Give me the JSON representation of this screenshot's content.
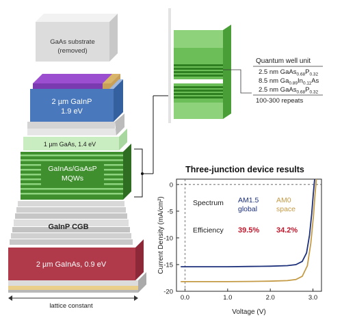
{
  "stack": {
    "substrate": "GaAs substrate",
    "substrate_note": "(removed)",
    "top_cell_line1": "2 µm GaInP",
    "top_cell_line2": "1.9 eV",
    "gaas_layer": "1 µm GaAs, 1.4 eV",
    "mqw_line1": "GaInAs/GaAsP",
    "mqw_line2": "MQWs",
    "cgb": "GaInP  CGB",
    "bottom_cell": "2 µm GaInAs, 0.9 eV",
    "axis_label": "lattice constant"
  },
  "quantum_well": {
    "title": "Quantum well unit",
    "layers": [
      {
        "base": "2.5 nm GaAs",
        "sub": "0.68",
        "mid": "P",
        "sub2": "0.32",
        "tail": ""
      },
      {
        "base": "8.5 nm Ga",
        "sub": "0.89",
        "mid": "In",
        "sub2": "0.11",
        "tail": "As"
      },
      {
        "base": "2.5 nm GaAs",
        "sub": "0.68",
        "mid": "P",
        "sub2": "0.32",
        "tail": ""
      }
    ],
    "repeats": "100-300 repeats"
  },
  "colors": {
    "top_cell": "#4a78bd",
    "gaas": "#c9ecc0",
    "mqw_green": "#3f8f2e",
    "bottom_cell": "#b0394a",
    "purple": "#9b4fd0",
    "gold": "#d9b56a",
    "am15_curve": "#1b2f7a",
    "am0_curve": "#c49a45",
    "efficiency_red": "#c0162b"
  },
  "chart_data": {
    "type": "line",
    "title": "Three-junction device results",
    "xlabel": "Voltage (V)",
    "ylabel": "Current Density (mA/cm²)",
    "xlim": [
      -0.2,
      3.2
    ],
    "ylim": [
      -20,
      1
    ],
    "xticks": [
      "0.0",
      "1.0",
      "2.0",
      "3.0"
    ],
    "yticks": [
      "0",
      "-5",
      "-10",
      "-15",
      "-20"
    ],
    "legend": {
      "spectrum_label": "Spectrum",
      "efficiency_label": "Efficiency",
      "am15_name": "AM1.5",
      "am15_sub": "global",
      "am0_name": "AM0",
      "am0_sub": "space",
      "am15_eff": "39.5%",
      "am0_eff": "34.2%"
    },
    "series": [
      {
        "name": "AM1.5 global",
        "x": [
          -0.1,
          0.5,
          1.0,
          1.5,
          2.0,
          2.4,
          2.6,
          2.75,
          2.85,
          2.92,
          2.97,
          3.01,
          3.04
        ],
        "y": [
          -15.4,
          -15.4,
          -15.4,
          -15.35,
          -15.3,
          -15.2,
          -15.0,
          -14.4,
          -12.8,
          -9.5,
          -5.5,
          -1.5,
          1.0
        ]
      },
      {
        "name": "AM0 space",
        "x": [
          -0.1,
          0.5,
          1.0,
          1.5,
          2.0,
          2.4,
          2.6,
          2.75,
          2.87,
          2.95,
          3.01,
          3.05,
          3.08
        ],
        "y": [
          -18.2,
          -18.2,
          -18.2,
          -18.15,
          -18.1,
          -18.0,
          -17.8,
          -17.2,
          -15.2,
          -11.0,
          -6.0,
          -1.8,
          1.0
        ]
      }
    ]
  }
}
